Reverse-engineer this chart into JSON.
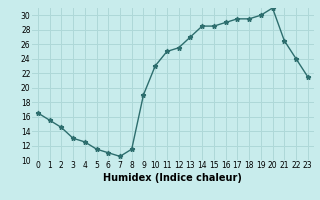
{
  "x": [
    0,
    1,
    2,
    3,
    4,
    5,
    6,
    7,
    8,
    9,
    10,
    11,
    12,
    13,
    14,
    15,
    16,
    17,
    18,
    19,
    20,
    21,
    22,
    23
  ],
  "y": [
    16.5,
    15.5,
    14.5,
    13.0,
    12.5,
    11.5,
    11.0,
    10.5,
    11.5,
    19.0,
    23.0,
    25.0,
    25.5,
    27.0,
    28.5,
    28.5,
    29.0,
    29.5,
    29.5,
    30.0,
    31.0,
    26.5,
    24.0,
    21.5
  ],
  "xlabel": "Humidex (Indice chaleur)",
  "xlim": [
    -0.5,
    23.5
  ],
  "ylim": [
    10,
    31
  ],
  "yticks": [
    10,
    12,
    14,
    16,
    18,
    20,
    22,
    24,
    26,
    28,
    30
  ],
  "xticks": [
    0,
    1,
    2,
    3,
    4,
    5,
    6,
    7,
    8,
    9,
    10,
    11,
    12,
    13,
    14,
    15,
    16,
    17,
    18,
    19,
    20,
    21,
    22,
    23
  ],
  "line_color": "#2d6e6e",
  "bg_color": "#c8ecec",
  "grid_color": "#aed8d8",
  "marker": "*",
  "marker_size": 3.5,
  "line_width": 1.0,
  "tick_fontsize": 5.5,
  "xlabel_fontsize": 7
}
